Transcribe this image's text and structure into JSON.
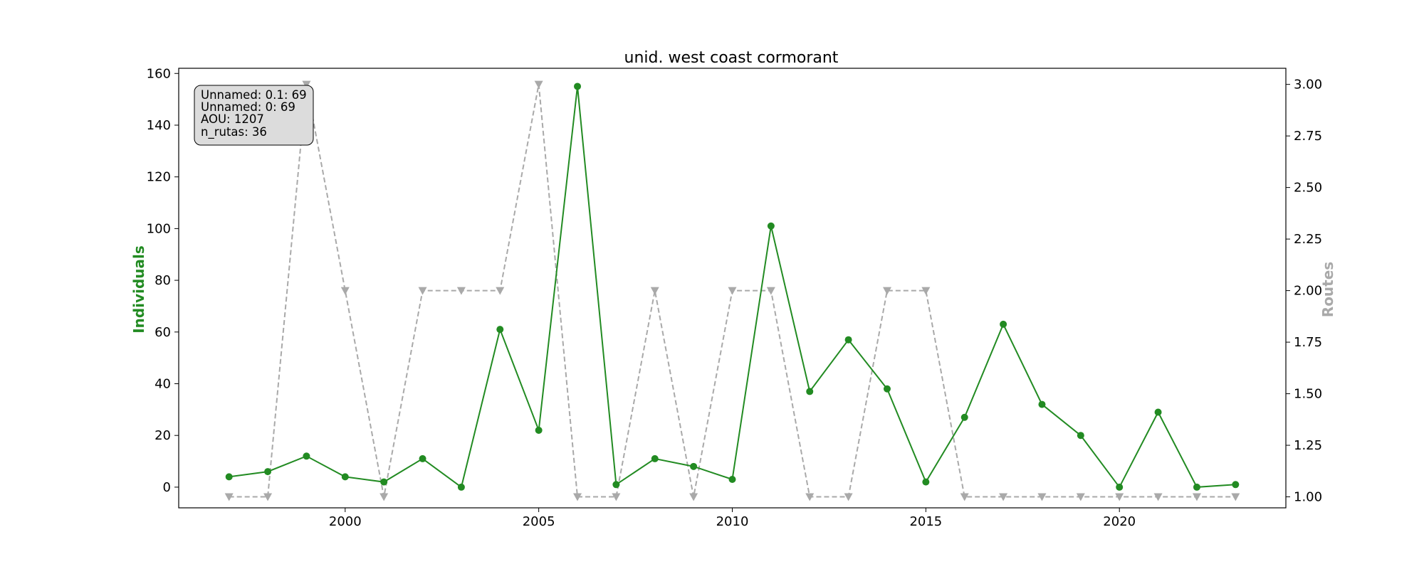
{
  "chart_data": {
    "type": "line",
    "title": "unid. west coast cormorant",
    "ylabel_left": "Individuals",
    "ylabel_right": "Routes",
    "x": [
      1997,
      1998,
      1999,
      2000,
      2001,
      2002,
      2003,
      2004,
      2005,
      2006,
      2007,
      2008,
      2009,
      2010,
      2011,
      2012,
      2013,
      2014,
      2015,
      2016,
      2017,
      2018,
      2019,
      2020,
      2021,
      2022,
      2023
    ],
    "xlim": [
      1995.7,
      2024.3
    ],
    "x_ticks": [
      2000,
      2005,
      2010,
      2015,
      2020
    ],
    "ylim_left": [
      -8,
      162
    ],
    "y_ticks_left": [
      0,
      20,
      40,
      60,
      80,
      100,
      120,
      140,
      160
    ],
    "ylim_right": [
      0.9467,
      3.0781
    ],
    "y_ticks_right": [
      "1.00",
      "1.25",
      "1.50",
      "1.75",
      "2.00",
      "2.25",
      "2.50",
      "2.75",
      "3.00"
    ],
    "grid": false,
    "series": [
      {
        "name": "Individuals",
        "axis": "left",
        "color": "#228B22",
        "style": "solid",
        "marker": "circle",
        "values": [
          4,
          6,
          12,
          4,
          2,
          11,
          0,
          61,
          22,
          155,
          1,
          11,
          8,
          3,
          101,
          37,
          57,
          38,
          2,
          27,
          63,
          32,
          20,
          0,
          29,
          0,
          1
        ]
      },
      {
        "name": "Routes",
        "axis": "right",
        "color": "#A9A9A9",
        "style": "dashed",
        "marker": "triangle-down",
        "values": [
          1,
          1,
          3,
          2,
          1,
          2,
          2,
          2,
          3,
          1,
          1,
          2,
          1,
          2,
          2,
          1,
          1,
          2,
          2,
          1,
          1,
          1,
          1,
          1,
          1,
          1,
          1
        ]
      }
    ],
    "annotation": {
      "lines": [
        "Unnamed: 0.1: 69",
        "Unnamed: 0: 69",
        "AOU: 1207",
        "n_rutas: 36"
      ],
      "placement": "top-left"
    }
  }
}
